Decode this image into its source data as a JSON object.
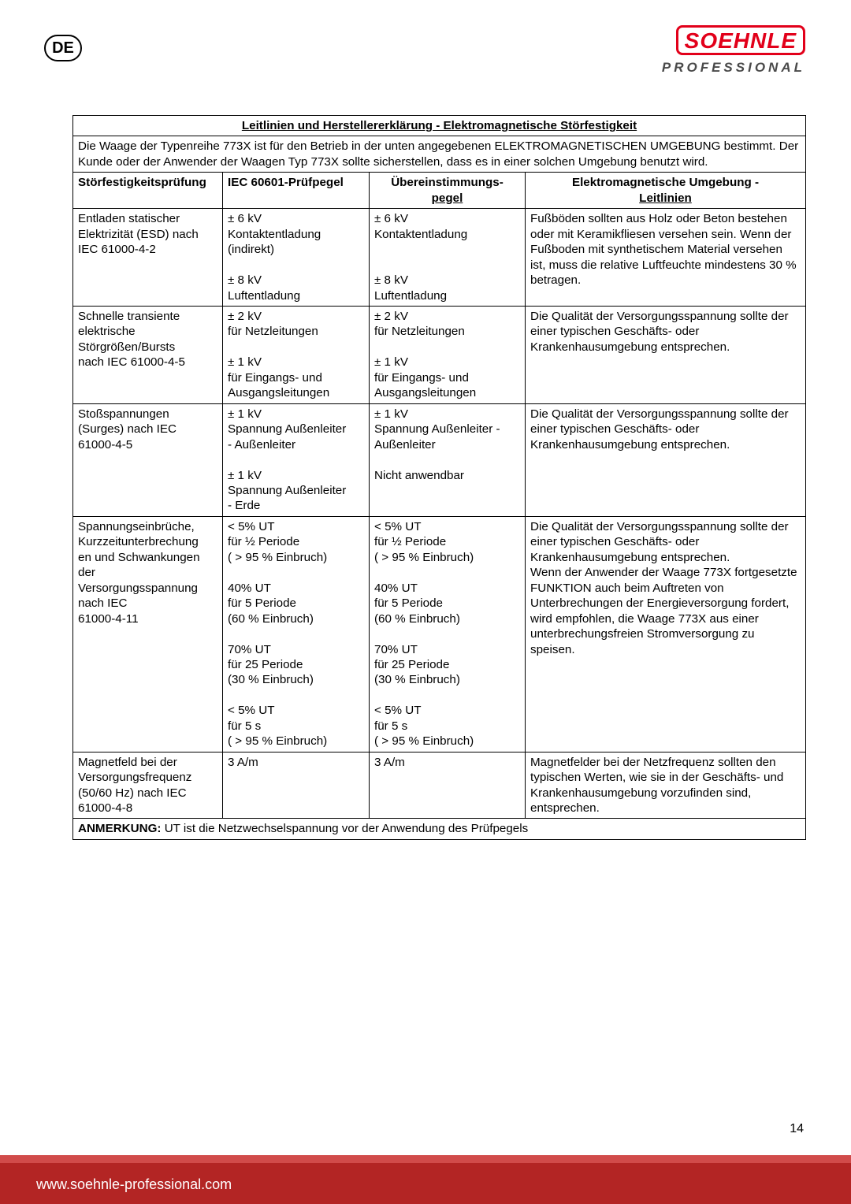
{
  "badge": "DE",
  "logo": {
    "brand": "SOEHNLE",
    "sub": "PROFESSIONAL"
  },
  "pageNumber": "14",
  "footerUrl": "www.soehnle-professional.com",
  "table": {
    "title": "Leitlinien und Herstellererklärung - Elektromagnetische Störfestigkeit",
    "intro": "Die Waage der Typenreihe 773X ist für den Betrieb in der unten angegebenen ELEKTROMAGNETISCHEN UMGEBUNG bestimmt. Der Kunde oder der Anwender der Waagen Typ 773X sollte sicherstellen, dass es in einer solchen Umgebung benutzt wird.",
    "headers": {
      "c1": "Störfestigkeitsprüfung",
      "c2": "IEC 60601-Prüfpegel",
      "c3a": "Übereinstimmungs-",
      "c3b": "pegel",
      "c4a": "Elektromagnetische Umgebung -",
      "c4b": "Leitlinien"
    },
    "rows": [
      {
        "c1": "Entladen statischer\nElektrizität (ESD) nach\nIEC 61000-4-2",
        "c2": "± 6 kV\nKontaktentladung\n(indirekt)\n\n± 8 kV\nLuftentladung",
        "c3": "± 6 kV\nKontaktentladung\n\n\n± 8 kV\nLuftentladung",
        "c4": "Fußböden sollten aus Holz oder Beton bestehen oder mit Keramikfliesen versehen sein. Wenn der Fußboden mit synthetischem Material versehen ist, muss die relative Luftfeuchte mindestens 30 % betragen."
      },
      {
        "c1": "Schnelle transiente\nelektrische\nStörgrößen/Bursts\nnach IEC 61000-4-5",
        "c2": "± 2 kV\nfür Netzleitungen\n\n± 1 kV\nfür Eingangs- und\nAusgangsleitungen",
        "c3": "± 2 kV\nfür Netzleitungen\n\n± 1 kV\nfür Eingangs- und\nAusgangsleitungen",
        "c4": "Die Qualität der Versorgungsspannung sollte der einer typischen Geschäfts- oder Krankenhausumgebung entsprechen."
      },
      {
        "c1": "Stoßspannungen\n(Surges) nach IEC\n61000-4-5",
        "c2": "± 1 kV\nSpannung Außenleiter\n- Außenleiter\n\n± 1 kV\nSpannung Außenleiter\n- Erde",
        "c3": "± 1 kV\nSpannung Außenleiter -\nAußenleiter\n\nNicht anwendbar",
        "c4": "Die Qualität der Versorgungsspannung sollte der einer typischen Geschäfts- oder Krankenhausumgebung entsprechen."
      },
      {
        "c1": "Spannungseinbrüche,\nKurzzeitunterbrechung\nen und Schwankungen\nder\nVersorgungsspannung\nnach IEC\n61000-4-11",
        "c2": "< 5% UT\nfür ½ Periode\n( > 95 % Einbruch)\n\n40% UT\nfür 5 Periode\n(60 % Einbruch)\n\n70% UT\nfür 25 Periode\n(30 % Einbruch)\n\n< 5% UT\nfür 5 s\n( > 95 % Einbruch)",
        "c3": "< 5% UT\nfür ½ Periode\n( > 95 % Einbruch)\n\n40% UT\nfür 5 Periode\n(60 % Einbruch)\n\n70% UT\nfür 25 Periode\n(30 % Einbruch)\n\n< 5% UT\nfür 5 s\n( > 95 % Einbruch)",
        "c4": "Die Qualität der Versorgungsspannung sollte der einer typischen Geschäfts- oder Krankenhausumgebung entsprechen.\nWenn der Anwender der Waage 773X fortgesetzte FUNKTION auch beim Auftreten von Unterbrechungen der Energieversorgung fordert, wird empfohlen, die Waage 773X aus einer unterbrechungsfreien Stromversorgung zu speisen."
      },
      {
        "c1": "Magnetfeld bei der\nVersorgungsfrequenz\n(50/60 Hz) nach IEC\n61000-4-8",
        "c2": "3 A/m",
        "c3": "3 A/m",
        "c4": "Magnetfelder bei der Netzfrequenz sollten den typischen Werten, wie sie in der Geschäfts- und Krankenhausumgebung vorzufinden sind, entsprechen."
      }
    ],
    "footnoteLabel": "ANMERKUNG:",
    "footnoteText": " UT ist die Netzwechselspannung vor der Anwendung des Prüfpegels"
  }
}
